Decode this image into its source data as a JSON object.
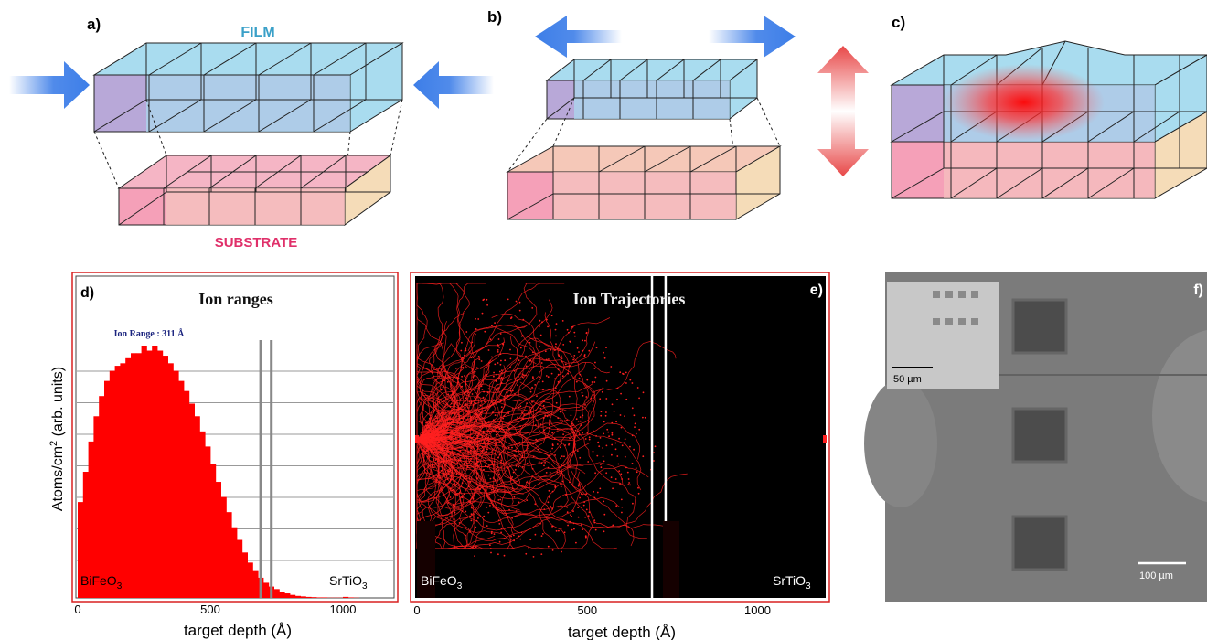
{
  "panels": {
    "a": {
      "label": "a)",
      "film_label": "FILM",
      "substrate_label": "SUBSTRATE"
    },
    "b": {
      "label": "b)"
    },
    "c": {
      "label": "c)"
    },
    "d": {
      "label": "d)",
      "title": "Ion ranges",
      "annotation": "Ion Range : 311 Å",
      "left_material": "BiFeO",
      "right_material": "SrTiO",
      "material_subscript": "3",
      "ylabel_main": "Atoms/cm",
      "ylabel_sup": "2",
      "ylabel_rest": " (arb. units)",
      "xlabel": "target depth (Å)"
    },
    "e": {
      "label": "e)",
      "title": "Ion Trajectories",
      "left_material": "BiFeO",
      "right_material": "SrTiO",
      "material_subscript": "3",
      "xlabel": "target depth (Å)"
    },
    "f": {
      "label": "f)",
      "inset_scale": "50 µm",
      "main_scale": "100 µm"
    }
  },
  "colors": {
    "film": "#a9dcef",
    "film_left": "#b8a8d8",
    "substrate": "#f5b5c5",
    "substrate_right": "#f5dcb8",
    "arrow_blue": "#3d7ee8",
    "arrow_red": "#e84848",
    "histogram": "#ff0000",
    "trajectory": "#ff2020",
    "film_label": "#3aa0c8",
    "substrate_label": "#e0306a",
    "annotation": "#1a237e"
  },
  "chart_data": [
    {
      "type": "bar",
      "title": "Ion ranges",
      "xlabel": "target depth (Å)",
      "ylabel": "Atoms/cm2 (arb. units)",
      "xlim": [
        0,
        1200
      ],
      "x_ticks": [
        0,
        500,
        1000
      ],
      "mean_range": 311,
      "interface_lines": [
        690,
        730
      ],
      "x": [
        0,
        20,
        40,
        60,
        80,
        100,
        120,
        140,
        160,
        180,
        200,
        220,
        240,
        260,
        280,
        300,
        320,
        340,
        360,
        380,
        400,
        420,
        440,
        460,
        480,
        500,
        520,
        540,
        560,
        580,
        600,
        620,
        640,
        660,
        680,
        700,
        720,
        740,
        760,
        780,
        800,
        820,
        840,
        860,
        880,
        900,
        920,
        940,
        960,
        980,
        1000,
        1020,
        1040
      ],
      "values": [
        0.38,
        0.5,
        0.62,
        0.72,
        0.8,
        0.86,
        0.9,
        0.92,
        0.93,
        0.95,
        0.97,
        0.97,
        1.0,
        0.98,
        1.0,
        0.98,
        0.96,
        0.93,
        0.9,
        0.86,
        0.82,
        0.77,
        0.72,
        0.66,
        0.6,
        0.53,
        0.46,
        0.4,
        0.34,
        0.28,
        0.23,
        0.18,
        0.14,
        0.11,
        0.08,
        0.06,
        0.045,
        0.035,
        0.025,
        0.018,
        0.012,
        0.008,
        0.006,
        0.004,
        0.003,
        0.002,
        0.002,
        0.001,
        0.001,
        0.001,
        0.004,
        0.002,
        0.001
      ]
    },
    {
      "type": "scatter",
      "title": "Ion Trajectories",
      "xlabel": "target depth (Å)",
      "xlim": [
        0,
        1200
      ],
      "x_ticks": [
        0,
        500,
        1000
      ],
      "interface_lines": [
        690,
        730
      ]
    }
  ]
}
